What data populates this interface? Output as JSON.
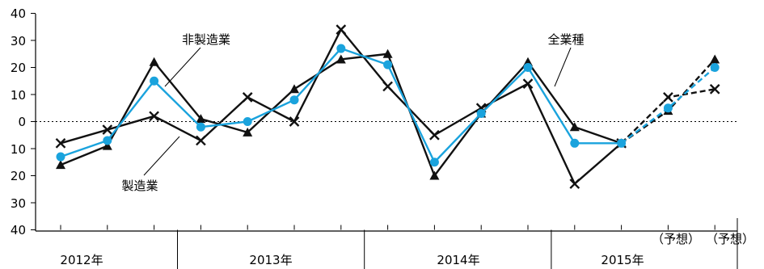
{
  "chart_data": {
    "type": "line",
    "y_tick_labels": [
      "40",
      "30",
      "20",
      "10",
      "0",
      "10",
      "20",
      "30",
      "40"
    ],
    "ylim": [
      -40,
      40
    ],
    "zero_reference_line": "dotted",
    "grid": false,
    "x_points": 15,
    "forecast_from_index": 12,
    "year_groups": [
      {
        "label": "2012年",
        "start": 0,
        "count": 3
      },
      {
        "label": "2013年",
        "start": 3,
        "count": 4
      },
      {
        "label": "2014年",
        "start": 7,
        "count": 4
      },
      {
        "label": "2015年",
        "start": 11,
        "count": 4
      }
    ],
    "forecast_labels": [
      "（予想）",
      "（予想）"
    ],
    "series": [
      {
        "name": "非製造業",
        "marker": "triangle",
        "color": "#111111",
        "values": [
          -16,
          -9,
          22,
          1,
          -4,
          12,
          23,
          25,
          -20,
          3,
          22,
          -2,
          -8,
          4,
          23
        ]
      },
      {
        "name": "製造業",
        "marker": "x",
        "color": "#111111",
        "values": [
          -8,
          -3,
          2,
          -7,
          9,
          0,
          34,
          13,
          -5,
          5,
          14,
          -23,
          -8,
          9,
          12
        ]
      },
      {
        "name": "全業種",
        "marker": "circle",
        "color": "#1aa3dd",
        "values": [
          -13,
          -7,
          15,
          -2,
          0,
          8,
          27,
          21,
          -15,
          3,
          20,
          -8,
          -8,
          5,
          20
        ]
      }
    ]
  }
}
